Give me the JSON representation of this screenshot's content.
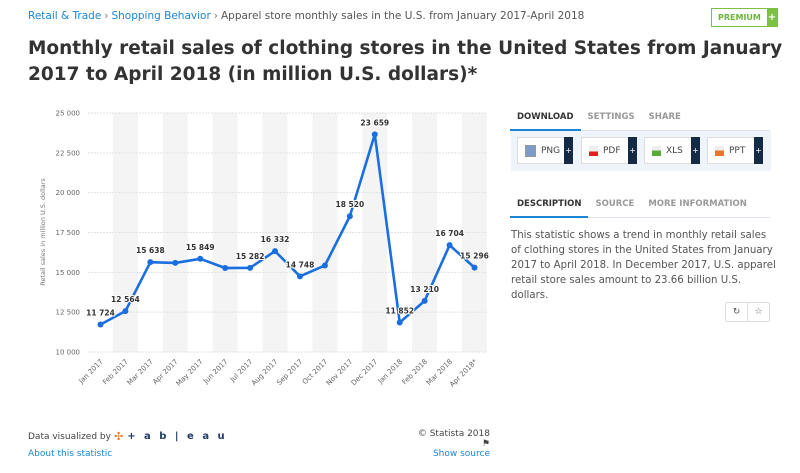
{
  "breadcrumb": {
    "items": [
      "Retail & Trade",
      "Shopping Behavior"
    ],
    "current": "Apparel store monthly sales in the U.S. from January 2017-April 2018",
    "separator": "›"
  },
  "premium": {
    "label": "PREMIUM",
    "plus": "+"
  },
  "page_title": "Monthly retail sales of clothing stores in the United States from January 2017 to April 2018 (in million U.S. dollars)*",
  "chart_data": {
    "type": "line",
    "title": "",
    "xlabel": "",
    "ylabel": "Retail sales in million U.S. dollars",
    "categories": [
      "Jan 2017",
      "Feb 2017",
      "Mar 2017",
      "Apr 2017",
      "May 2017",
      "Jun 2017",
      "Jul 2017",
      "Aug 2017",
      "Sep 2017",
      "Oct 2017",
      "Nov 2017",
      "Dec 2017",
      "Jan 2018",
      "Feb 2018",
      "Mar 2018",
      "Apr 2018*"
    ],
    "values": [
      11724,
      12564,
      15638,
      15590,
      15849,
      15270,
      15282,
      16332,
      14748,
      15430,
      18520,
      23659,
      11852,
      13210,
      16704,
      15296
    ],
    "data_labels": [
      "11 724",
      "12 564",
      "15 638",
      null,
      "15 849",
      null,
      "15 282",
      "16 332",
      "14 748",
      null,
      "18 520",
      "23 659",
      "11 852",
      "13 210",
      "16 704",
      "15 296"
    ],
    "ylim": [
      10000,
      25000
    ],
    "yticks": [
      10000,
      12500,
      15000,
      17500,
      20000,
      22500,
      25000
    ],
    "ytick_labels": [
      "10 000",
      "12 500",
      "15 000",
      "17 500",
      "20 000",
      "22 500",
      "25 000"
    ],
    "grid": true,
    "line_color": "#1a6fe0"
  },
  "download": {
    "tabs": [
      "DOWNLOAD",
      "SETTINGS",
      "SHARE"
    ],
    "buttons": [
      "PNG",
      "PDF",
      "XLS",
      "PPT"
    ],
    "plus": "+"
  },
  "description": {
    "tabs": [
      "DESCRIPTION",
      "SOURCE",
      "MORE INFORMATION"
    ],
    "text": "This statistic shows a trend in monthly retail sales of clothing stores in the United States from January 2017 to April 2018. In December 2017, U.S. apparel retail store sales amount to 23.66 billion U.S. dollars."
  },
  "actions": {
    "history": "↻",
    "favorite": "☆"
  },
  "footer": {
    "visualized_by": "Data visualized by",
    "tableau": "+ a b | e a u",
    "copyright": "© Statista 2018",
    "about": "About this statistic",
    "show_source": "Show source"
  }
}
